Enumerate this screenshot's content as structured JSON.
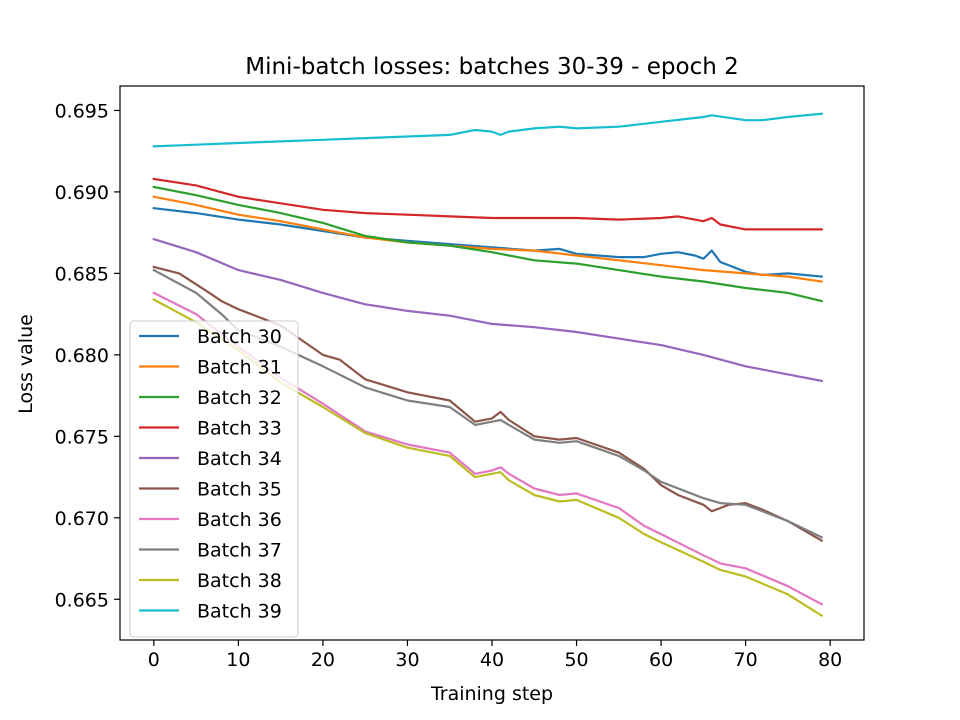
{
  "chart_data": {
    "type": "line",
    "title": "Mini-batch losses: batches 30-39 - epoch 2",
    "xlabel": "Training step",
    "ylabel": "Loss value",
    "xlim": [
      -4,
      84
    ],
    "ylim": [
      0.6625,
      0.6965
    ],
    "xticks": [
      0,
      10,
      20,
      30,
      40,
      50,
      60,
      70,
      80
    ],
    "yticks": [
      0.665,
      0.67,
      0.675,
      0.68,
      0.685,
      0.69,
      0.695
    ],
    "ytick_labels": [
      "0.665",
      "0.670",
      "0.675",
      "0.680",
      "0.685",
      "0.690",
      "0.695"
    ],
    "grid": false,
    "legend_position": "lower-left",
    "series": [
      {
        "name": "Batch 30",
        "color": "#1f77b4",
        "points": [
          [
            0,
            0.689
          ],
          [
            5,
            0.6887
          ],
          [
            10,
            0.6883
          ],
          [
            15,
            0.688
          ],
          [
            20,
            0.6876
          ],
          [
            25,
            0.6872
          ],
          [
            30,
            0.687
          ],
          [
            35,
            0.6868
          ],
          [
            40,
            0.6866
          ],
          [
            45,
            0.6864
          ],
          [
            48,
            0.6865
          ],
          [
            50,
            0.6862
          ],
          [
            55,
            0.686
          ],
          [
            58,
            0.686
          ],
          [
            60,
            0.6862
          ],
          [
            62,
            0.6863
          ],
          [
            64,
            0.6861
          ],
          [
            65,
            0.6859
          ],
          [
            66,
            0.6864
          ],
          [
            67,
            0.6857
          ],
          [
            70,
            0.6851
          ],
          [
            72,
            0.6849
          ],
          [
            75,
            0.685
          ],
          [
            79,
            0.6848
          ]
        ]
      },
      {
        "name": "Batch 31",
        "color": "#ff7f0e",
        "points": [
          [
            0,
            0.6897
          ],
          [
            5,
            0.6892
          ],
          [
            10,
            0.6886
          ],
          [
            15,
            0.6882
          ],
          [
            20,
            0.6877
          ],
          [
            25,
            0.6872
          ],
          [
            30,
            0.6869
          ],
          [
            35,
            0.6867
          ],
          [
            40,
            0.6865
          ],
          [
            45,
            0.6864
          ],
          [
            50,
            0.6861
          ],
          [
            55,
            0.6858
          ],
          [
            60,
            0.6855
          ],
          [
            65,
            0.6852
          ],
          [
            70,
            0.685
          ],
          [
            75,
            0.6848
          ],
          [
            79,
            0.6845
          ]
        ]
      },
      {
        "name": "Batch 32",
        "color": "#2ca02c",
        "points": [
          [
            0,
            0.6903
          ],
          [
            5,
            0.6898
          ],
          [
            10,
            0.6892
          ],
          [
            15,
            0.6887
          ],
          [
            20,
            0.6881
          ],
          [
            25,
            0.6873
          ],
          [
            30,
            0.6869
          ],
          [
            35,
            0.6867
          ],
          [
            40,
            0.6863
          ],
          [
            45,
            0.6858
          ],
          [
            50,
            0.6856
          ],
          [
            55,
            0.6852
          ],
          [
            60,
            0.6848
          ],
          [
            65,
            0.6845
          ],
          [
            70,
            0.6841
          ],
          [
            75,
            0.6838
          ],
          [
            79,
            0.6833
          ]
        ]
      },
      {
        "name": "Batch 33",
        "color": "#d62728",
        "points": [
          [
            0,
            0.6908
          ],
          [
            5,
            0.6904
          ],
          [
            10,
            0.6897
          ],
          [
            15,
            0.6893
          ],
          [
            20,
            0.6889
          ],
          [
            25,
            0.6887
          ],
          [
            30,
            0.6886
          ],
          [
            35,
            0.6885
          ],
          [
            40,
            0.6884
          ],
          [
            45,
            0.6884
          ],
          [
            50,
            0.6884
          ],
          [
            55,
            0.6883
          ],
          [
            60,
            0.6884
          ],
          [
            62,
            0.6885
          ],
          [
            65,
            0.6882
          ],
          [
            66,
            0.6884
          ],
          [
            67,
            0.688
          ],
          [
            70,
            0.6877
          ],
          [
            75,
            0.6877
          ],
          [
            79,
            0.6877
          ]
        ]
      },
      {
        "name": "Batch 34",
        "color": "#9467bd",
        "points": [
          [
            0,
            0.6871
          ],
          [
            5,
            0.6863
          ],
          [
            10,
            0.6852
          ],
          [
            15,
            0.6846
          ],
          [
            20,
            0.6838
          ],
          [
            25,
            0.6831
          ],
          [
            30,
            0.6827
          ],
          [
            35,
            0.6824
          ],
          [
            40,
            0.6819
          ],
          [
            45,
            0.6817
          ],
          [
            50,
            0.6814
          ],
          [
            55,
            0.681
          ],
          [
            60,
            0.6806
          ],
          [
            65,
            0.68
          ],
          [
            70,
            0.6793
          ],
          [
            75,
            0.6788
          ],
          [
            79,
            0.6784
          ]
        ]
      },
      {
        "name": "Batch 35",
        "color": "#8c564b",
        "points": [
          [
            0,
            0.6854
          ],
          [
            3,
            0.685
          ],
          [
            6,
            0.684
          ],
          [
            8,
            0.6833
          ],
          [
            10,
            0.6828
          ],
          [
            15,
            0.6818
          ],
          [
            20,
            0.68
          ],
          [
            22,
            0.6797
          ],
          [
            25,
            0.6785
          ],
          [
            30,
            0.6777
          ],
          [
            35,
            0.6772
          ],
          [
            38,
            0.6759
          ],
          [
            40,
            0.6761
          ],
          [
            41,
            0.6765
          ],
          [
            42,
            0.676
          ],
          [
            45,
            0.675
          ],
          [
            48,
            0.6748
          ],
          [
            50,
            0.6749
          ],
          [
            55,
            0.674
          ],
          [
            58,
            0.673
          ],
          [
            60,
            0.672
          ],
          [
            62,
            0.6714
          ],
          [
            65,
            0.6708
          ],
          [
            66,
            0.6704
          ],
          [
            68,
            0.6708
          ],
          [
            70,
            0.6709
          ],
          [
            72,
            0.6705
          ],
          [
            75,
            0.6698
          ],
          [
            79,
            0.6686
          ]
        ]
      },
      {
        "name": "Batch 36",
        "color": "#e377c2",
        "points": [
          [
            0,
            0.6838
          ],
          [
            5,
            0.6825
          ],
          [
            10,
            0.6805
          ],
          [
            15,
            0.6786
          ],
          [
            20,
            0.677
          ],
          [
            25,
            0.6753
          ],
          [
            30,
            0.6745
          ],
          [
            35,
            0.674
          ],
          [
            38,
            0.6727
          ],
          [
            40,
            0.6729
          ],
          [
            41,
            0.6731
          ],
          [
            42,
            0.6727
          ],
          [
            45,
            0.6718
          ],
          [
            48,
            0.6714
          ],
          [
            50,
            0.6715
          ],
          [
            55,
            0.6706
          ],
          [
            58,
            0.6695
          ],
          [
            60,
            0.669
          ],
          [
            65,
            0.6677
          ],
          [
            67,
            0.6672
          ],
          [
            70,
            0.6669
          ],
          [
            75,
            0.6658
          ],
          [
            79,
            0.6647
          ]
        ]
      },
      {
        "name": "Batch 37",
        "color": "#7f7f7f",
        "points": [
          [
            0,
            0.6852
          ],
          [
            5,
            0.6838
          ],
          [
            8,
            0.6825
          ],
          [
            10,
            0.6815
          ],
          [
            15,
            0.6805
          ],
          [
            20,
            0.6793
          ],
          [
            25,
            0.678
          ],
          [
            30,
            0.6772
          ],
          [
            35,
            0.6768
          ],
          [
            38,
            0.6757
          ],
          [
            40,
            0.6759
          ],
          [
            41,
            0.676
          ],
          [
            42,
            0.6757
          ],
          [
            45,
            0.6748
          ],
          [
            48,
            0.6746
          ],
          [
            50,
            0.6747
          ],
          [
            55,
            0.6738
          ],
          [
            58,
            0.6729
          ],
          [
            60,
            0.6722
          ],
          [
            65,
            0.6712
          ],
          [
            67,
            0.6709
          ],
          [
            70,
            0.6708
          ],
          [
            75,
            0.6698
          ],
          [
            79,
            0.6688
          ]
        ]
      },
      {
        "name": "Batch 38",
        "color": "#bcbd22",
        "points": [
          [
            0,
            0.6834
          ],
          [
            5,
            0.682
          ],
          [
            10,
            0.6803
          ],
          [
            15,
            0.6783
          ],
          [
            20,
            0.6768
          ],
          [
            25,
            0.6752
          ],
          [
            30,
            0.6743
          ],
          [
            35,
            0.6738
          ],
          [
            38,
            0.6725
          ],
          [
            40,
            0.6727
          ],
          [
            41,
            0.6728
          ],
          [
            42,
            0.6723
          ],
          [
            45,
            0.6714
          ],
          [
            48,
            0.671
          ],
          [
            50,
            0.6711
          ],
          [
            55,
            0.67
          ],
          [
            58,
            0.669
          ],
          [
            60,
            0.6685
          ],
          [
            65,
            0.6673
          ],
          [
            67,
            0.6668
          ],
          [
            70,
            0.6664
          ],
          [
            75,
            0.6653
          ],
          [
            79,
            0.664
          ]
        ]
      },
      {
        "name": "Batch 39",
        "color": "#17becf",
        "points": [
          [
            0,
            0.6928
          ],
          [
            5,
            0.6929
          ],
          [
            10,
            0.693
          ],
          [
            15,
            0.6931
          ],
          [
            20,
            0.6932
          ],
          [
            25,
            0.6933
          ],
          [
            30,
            0.6934
          ],
          [
            35,
            0.6935
          ],
          [
            38,
            0.6938
          ],
          [
            40,
            0.6937
          ],
          [
            41,
            0.6935
          ],
          [
            42,
            0.6937
          ],
          [
            45,
            0.6939
          ],
          [
            48,
            0.694
          ],
          [
            50,
            0.6939
          ],
          [
            55,
            0.694
          ],
          [
            60,
            0.6943
          ],
          [
            65,
            0.6946
          ],
          [
            66,
            0.6947
          ],
          [
            70,
            0.6944
          ],
          [
            72,
            0.6944
          ],
          [
            75,
            0.6946
          ],
          [
            79,
            0.6948
          ]
        ]
      }
    ]
  }
}
